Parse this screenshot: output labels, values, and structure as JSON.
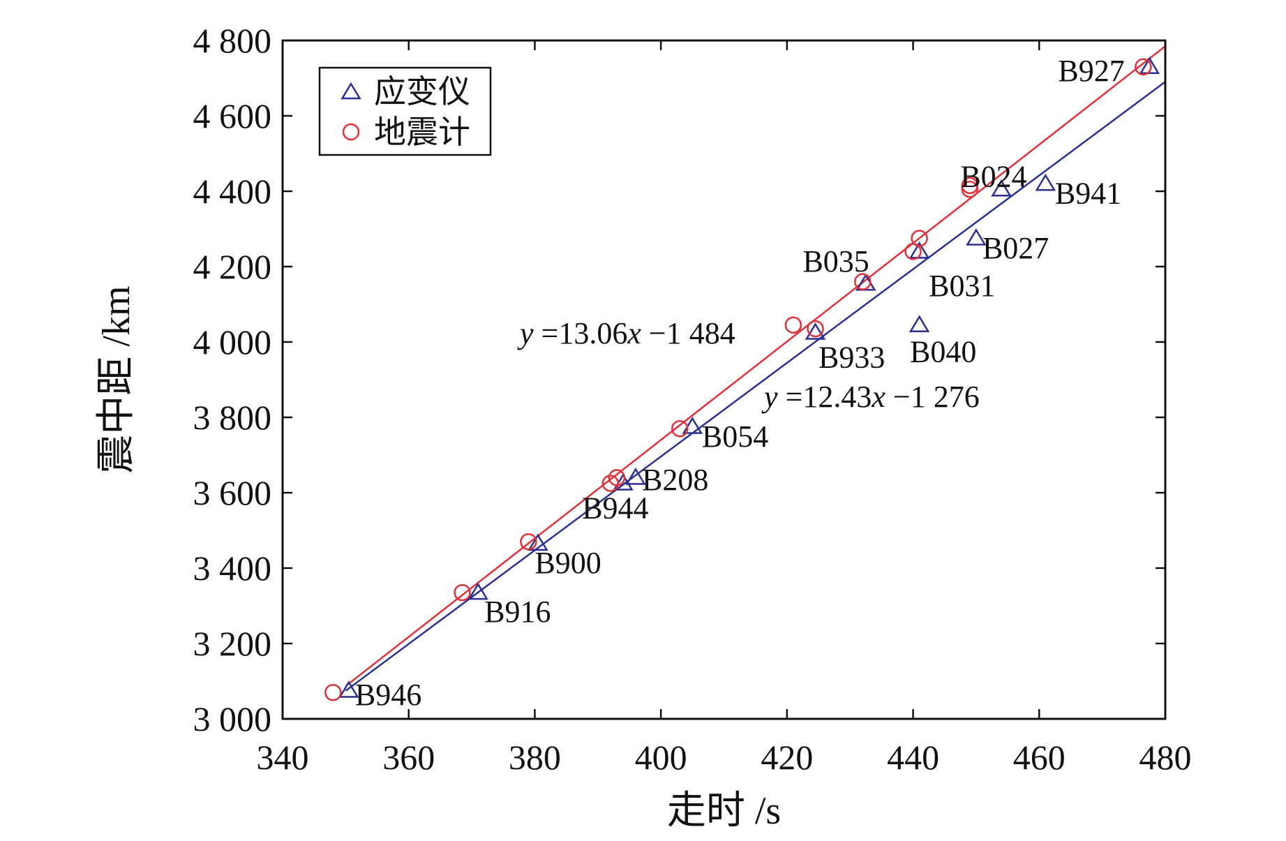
{
  "colors": {
    "strainmeter": "#2b2f8f",
    "seismometer": "#e0303a",
    "axis": "#111111"
  },
  "chart_data": {
    "type": "scatter",
    "xlabel": "走时 /s",
    "ylabel": "震中距 /km",
    "xlim": [
      340,
      480
    ],
    "ylim": [
      3000,
      4800
    ],
    "x_ticks": [
      340,
      360,
      380,
      400,
      420,
      440,
      460,
      480
    ],
    "y_ticks": [
      3000,
      3200,
      3400,
      3600,
      3800,
      4000,
      4200,
      4400,
      4600,
      4800
    ],
    "x_tick_labels": [
      "340",
      "360",
      "380",
      "400",
      "420",
      "440",
      "460",
      "480"
    ],
    "y_tick_labels": [
      "3 000",
      "3 200",
      "3 400",
      "3 600",
      "3 800",
      "4 000",
      "4 200",
      "4 400",
      "4 600",
      "4 800"
    ],
    "grid": false,
    "legend_position": "top-left",
    "series": [
      {
        "name": "应变仪",
        "marker": "triangle",
        "color": "#2b2f8f",
        "points": [
          {
            "x": 350.5,
            "y": 3075
          },
          {
            "x": 371,
            "y": 3335
          },
          {
            "x": 380.5,
            "y": 3465
          },
          {
            "x": 394,
            "y": 3625
          },
          {
            "x": 396,
            "y": 3640
          },
          {
            "x": 405,
            "y": 3775
          },
          {
            "x": 424.5,
            "y": 4025
          },
          {
            "x": 432.5,
            "y": 4155
          },
          {
            "x": 441,
            "y": 4240
          },
          {
            "x": 441,
            "y": 4045
          },
          {
            "x": 450,
            "y": 4275
          },
          {
            "x": 454,
            "y": 4405
          },
          {
            "x": 461,
            "y": 4420
          },
          {
            "x": 477.5,
            "y": 4730
          }
        ],
        "fit": {
          "slope": 12.43,
          "intercept": -1276,
          "x_range": [
            350,
            480
          ]
        },
        "equation": "y =12.43x −1 276"
      },
      {
        "name": "地震计",
        "marker": "circle",
        "color": "#e0303a",
        "points": [
          {
            "x": 348,
            "y": 3070
          },
          {
            "x": 368.5,
            "y": 3335
          },
          {
            "x": 379,
            "y": 3470
          },
          {
            "x": 392,
            "y": 3625
          },
          {
            "x": 393,
            "y": 3640
          },
          {
            "x": 403,
            "y": 3770
          },
          {
            "x": 421,
            "y": 4045
          },
          {
            "x": 424.5,
            "y": 4035
          },
          {
            "x": 432,
            "y": 4160
          },
          {
            "x": 440,
            "y": 4240
          },
          {
            "x": 441,
            "y": 4275
          },
          {
            "x": 449,
            "y": 4405
          },
          {
            "x": 449,
            "y": 4415
          },
          {
            "x": 476.5,
            "y": 4730
          }
        ],
        "fit": {
          "slope": 13.06,
          "intercept": -1484,
          "x_range": [
            350,
            480
          ]
        },
        "equation": "y =13.06x −1 484"
      }
    ],
    "station_labels": [
      {
        "text": "B946",
        "x": 351.5,
        "y": 3065
      },
      {
        "text": "B916",
        "x": 372,
        "y": 3285
      },
      {
        "text": "B900",
        "x": 380,
        "y": 3415
      },
      {
        "text": "B944",
        "x": 387.5,
        "y": 3560
      },
      {
        "text": "B208",
        "x": 397,
        "y": 3635
      },
      {
        "text": "B054",
        "x": 406.5,
        "y": 3750
      },
      {
        "text": "B933",
        "x": 425,
        "y": 3960
      },
      {
        "text": "B040",
        "x": 439.5,
        "y": 3975
      },
      {
        "text": "B035",
        "x": 422.5,
        "y": 4215
      },
      {
        "text": "B031",
        "x": 442.5,
        "y": 4150
      },
      {
        "text": "B027",
        "x": 451,
        "y": 4250
      },
      {
        "text": "B024",
        "x": 447.5,
        "y": 4440
      },
      {
        "text": "B941",
        "x": 462.5,
        "y": 4395
      },
      {
        "text": "B927",
        "x": 463,
        "y": 4720
      }
    ]
  }
}
